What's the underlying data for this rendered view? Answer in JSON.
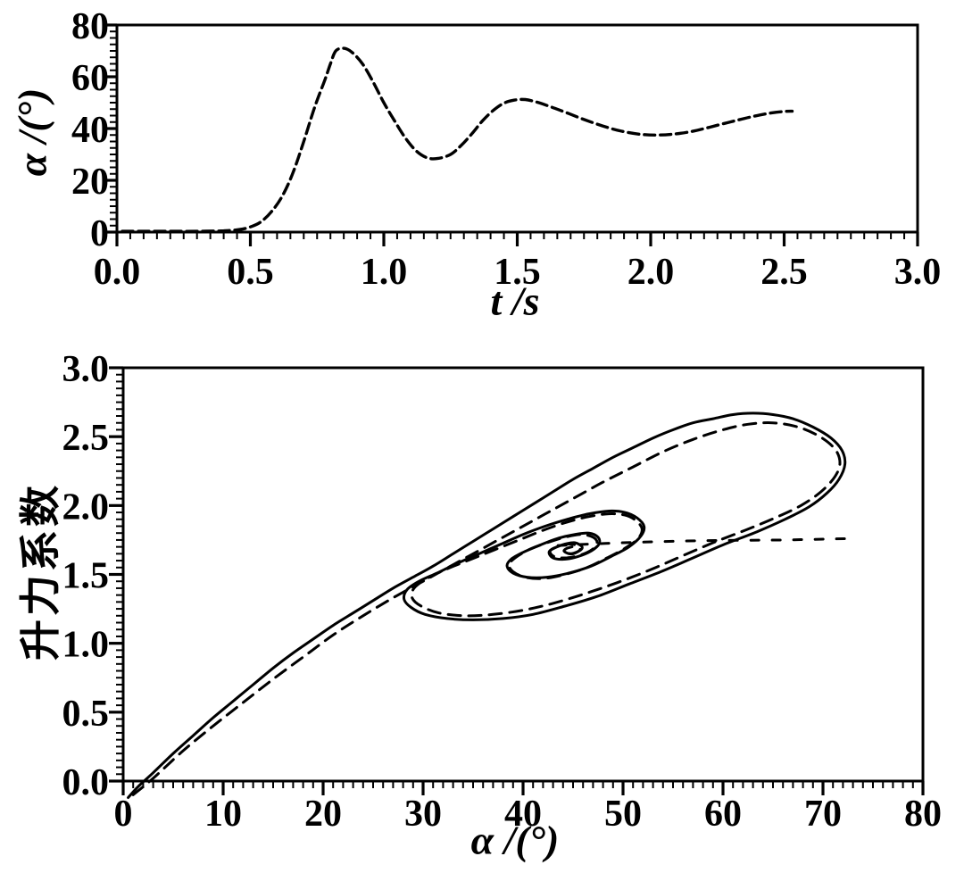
{
  "page": {
    "background": "#ffffff",
    "ink": "#000000"
  },
  "chart_data": [
    {
      "type": "line",
      "id": "alpha-vs-time",
      "title": "",
      "xlabel": "t /s",
      "ylabel": "α /(°)",
      "xlim": [
        0.0,
        3.0
      ],
      "ylim": [
        0,
        80
      ],
      "grid": false,
      "legend": "none",
      "x_ticks": [
        0.0,
        0.5,
        1.0,
        1.5,
        2.0,
        2.5,
        3.0
      ],
      "x_tick_labels": [
        "0.0",
        "0.5",
        "1.0",
        "1.5",
        "2.0",
        "2.5",
        "3.0"
      ],
      "y_ticks": [
        0,
        20,
        40,
        60,
        80
      ],
      "y_tick_labels": [
        "0",
        "20",
        "40",
        "60",
        "80"
      ],
      "x_minor_step": 0.05,
      "y_minor_step": 2.5,
      "series": [
        {
          "name": "angle-of-attack-response-curve",
          "style": "dashed",
          "dash": "12 6",
          "width": 3.4,
          "points": [
            [
              0.02,
              0.3
            ],
            [
              0.1,
              0.3
            ],
            [
              0.2,
              0.3
            ],
            [
              0.3,
              0.3
            ],
            [
              0.4,
              0.5
            ],
            [
              0.46,
              1
            ],
            [
              0.5,
              2
            ],
            [
              0.54,
              4
            ],
            [
              0.58,
              8
            ],
            [
              0.62,
              14
            ],
            [
              0.66,
              23
            ],
            [
              0.7,
              35
            ],
            [
              0.74,
              48
            ],
            [
              0.78,
              59
            ],
            [
              0.8,
              65
            ],
            [
              0.82,
              70
            ],
            [
              0.85,
              71
            ],
            [
              0.88,
              69.5
            ],
            [
              0.92,
              65
            ],
            [
              0.96,
              58
            ],
            [
              1.0,
              50
            ],
            [
              1.04,
              43
            ],
            [
              1.08,
              36.5
            ],
            [
              1.12,
              31.5
            ],
            [
              1.16,
              28.8
            ],
            [
              1.2,
              28.4
            ],
            [
              1.25,
              30
            ],
            [
              1.29,
              33.5
            ],
            [
              1.33,
              38
            ],
            [
              1.37,
              43
            ],
            [
              1.41,
              47
            ],
            [
              1.45,
              49.8
            ],
            [
              1.49,
              51
            ],
            [
              1.53,
              51.2
            ],
            [
              1.57,
              50.3
            ],
            [
              1.62,
              48.6
            ],
            [
              1.68,
              46.3
            ],
            [
              1.75,
              43.5
            ],
            [
              1.82,
              41
            ],
            [
              1.89,
              39
            ],
            [
              1.96,
              37.8
            ],
            [
              2.02,
              37.5
            ],
            [
              2.08,
              37.8
            ],
            [
              2.15,
              38.8
            ],
            [
              2.22,
              40.5
            ],
            [
              2.3,
              42.6
            ],
            [
              2.38,
              44.6
            ],
            [
              2.45,
              46
            ],
            [
              2.5,
              46.6
            ],
            [
              2.53,
              46.7
            ]
          ]
        }
      ]
    },
    {
      "type": "line",
      "id": "lift-vs-alpha",
      "title": "",
      "xlabel": "α /(°)",
      "ylabel": "升力系数",
      "xlim": [
        0,
        80
      ],
      "ylim": [
        0.0,
        3.0
      ],
      "grid": false,
      "legend": "none",
      "x_ticks": [
        0,
        10,
        20,
        30,
        40,
        50,
        60,
        70,
        80
      ],
      "x_tick_labels": [
        "0",
        "10",
        "20",
        "30",
        "40",
        "50",
        "60",
        "70",
        "80"
      ],
      "y_ticks": [
        0.0,
        0.5,
        1.0,
        1.5,
        2.0,
        2.5,
        3.0
      ],
      "y_tick_labels": [
        "0.0",
        "0.5",
        "1.0",
        "1.5",
        "2.0",
        "2.5",
        "3.0"
      ],
      "x_minor_step": 1,
      "y_minor_step": 0.05,
      "series": [
        {
          "name": "dynamic-lift-hysteresis-loop-solid",
          "style": "solid",
          "dash": "",
          "width": 3,
          "points": [
            [
              0.5,
              -0.12
            ],
            [
              1.5,
              -0.04
            ],
            [
              3,
              0.06
            ],
            [
              5,
              0.2
            ],
            [
              7,
              0.33
            ],
            [
              9,
              0.46
            ],
            [
              11,
              0.58
            ],
            [
              13,
              0.7
            ],
            [
              15,
              0.82
            ],
            [
              17,
              0.93
            ],
            [
              19,
              1.03
            ],
            [
              21,
              1.13
            ],
            [
              23,
              1.22
            ],
            [
              25,
              1.31
            ],
            [
              27,
              1.4
            ],
            [
              29,
              1.48
            ],
            [
              31,
              1.56
            ],
            [
              33,
              1.65
            ],
            [
              35,
              1.74
            ],
            [
              37,
              1.83
            ],
            [
              39,
              1.92
            ],
            [
              41,
              2.01
            ],
            [
              43,
              2.1
            ],
            [
              45,
              2.19
            ],
            [
              47,
              2.27
            ],
            [
              49,
              2.35
            ],
            [
              51,
              2.42
            ],
            [
              53,
              2.49
            ],
            [
              55,
              2.55
            ],
            [
              57,
              2.6
            ],
            [
              59,
              2.63
            ],
            [
              61,
              2.66
            ],
            [
              63,
              2.67
            ],
            [
              65,
              2.66
            ],
            [
              67,
              2.63
            ],
            [
              69,
              2.57
            ],
            [
              70.8,
              2.49
            ],
            [
              71.9,
              2.4
            ],
            [
              72.2,
              2.3
            ],
            [
              71.6,
              2.19
            ],
            [
              70.4,
              2.09
            ],
            [
              68.6,
              1.99
            ],
            [
              66.2,
              1.9
            ],
            [
              63.4,
              1.81
            ],
            [
              60.2,
              1.72
            ],
            [
              57,
              1.62
            ],
            [
              53.8,
              1.52
            ],
            [
              50.6,
              1.43
            ],
            [
              47.4,
              1.34
            ],
            [
              44.2,
              1.27
            ],
            [
              41,
              1.21
            ],
            [
              38,
              1.18
            ],
            [
              35,
              1.17
            ],
            [
              32.4,
              1.18
            ],
            [
              30.2,
              1.21
            ],
            [
              28.8,
              1.26
            ],
            [
              28.1,
              1.32
            ],
            [
              28.4,
              1.39
            ],
            [
              29.6,
              1.45
            ],
            [
              31.4,
              1.51
            ],
            [
              33.4,
              1.58
            ],
            [
              35.6,
              1.65
            ],
            [
              37.8,
              1.72
            ],
            [
              40,
              1.79
            ],
            [
              42.2,
              1.85
            ],
            [
              44.4,
              1.9
            ],
            [
              46.6,
              1.94
            ],
            [
              48.6,
              1.96
            ],
            [
              50.2,
              1.95
            ],
            [
              51.4,
              1.91
            ],
            [
              52.1,
              1.85
            ],
            [
              51.8,
              1.78
            ],
            [
              50.6,
              1.7
            ],
            [
              48.8,
              1.63
            ],
            [
              46.8,
              1.56
            ],
            [
              44.6,
              1.51
            ],
            [
              42.4,
              1.48
            ],
            [
              40.4,
              1.48
            ],
            [
              39,
              1.51
            ],
            [
              38.4,
              1.56
            ],
            [
              38.8,
              1.61
            ],
            [
              40,
              1.66
            ],
            [
              41.6,
              1.71
            ],
            [
              43.4,
              1.76
            ],
            [
              45.2,
              1.79
            ],
            [
              46.6,
              1.8
            ],
            [
              47.5,
              1.77
            ],
            [
              47.6,
              1.72
            ],
            [
              46.8,
              1.67
            ],
            [
              45.5,
              1.63
            ],
            [
              44.1,
              1.61
            ],
            [
              43,
              1.62
            ],
            [
              42.6,
              1.66
            ],
            [
              43.1,
              1.69
            ],
            [
              44.2,
              1.72
            ],
            [
              45.2,
              1.73
            ],
            [
              45.9,
              1.7
            ],
            [
              45.6,
              1.67
            ],
            [
              44.7,
              1.65
            ],
            [
              44.1,
              1.67
            ],
            [
              44.4,
              1.69
            ],
            [
              44.9,
              1.7
            ]
          ]
        },
        {
          "name": "dynamic-lift-hysteresis-loop-dashed-overlay",
          "style": "dashed",
          "dash": "14 9",
          "width": 3,
          "points": [
            [
              1,
              -0.1
            ],
            [
              3,
              0.02
            ],
            [
              6,
              0.22
            ],
            [
              9,
              0.4
            ],
            [
              12,
              0.57
            ],
            [
              15,
              0.74
            ],
            [
              18,
              0.9
            ],
            [
              21,
              1.06
            ],
            [
              24,
              1.2
            ],
            [
              27,
              1.33
            ],
            [
              30,
              1.45
            ],
            [
              33,
              1.57
            ],
            [
              36,
              1.69
            ],
            [
              39,
              1.81
            ],
            [
              42,
              1.93
            ],
            [
              45,
              2.05
            ],
            [
              48,
              2.17
            ],
            [
              51,
              2.28
            ],
            [
              54,
              2.39
            ],
            [
              57,
              2.48
            ],
            [
              60,
              2.55
            ],
            [
              62.5,
              2.59
            ],
            [
              65,
              2.6
            ],
            [
              67.5,
              2.57
            ],
            [
              69.7,
              2.5
            ],
            [
              71.2,
              2.41
            ],
            [
              71.7,
              2.31
            ],
            [
              71.2,
              2.21
            ],
            [
              69.8,
              2.1
            ],
            [
              67.8,
              2.0
            ],
            [
              65.2,
              1.91
            ],
            [
              62.2,
              1.82
            ],
            [
              59,
              1.73
            ],
            [
              55.8,
              1.63
            ],
            [
              52.6,
              1.53
            ],
            [
              49.4,
              1.44
            ],
            [
              46.2,
              1.36
            ],
            [
              43,
              1.29
            ],
            [
              40,
              1.24
            ],
            [
              37,
              1.21
            ],
            [
              34.2,
              1.2
            ],
            [
              31.6,
              1.22
            ],
            [
              29.8,
              1.27
            ],
            [
              28.9,
              1.33
            ],
            [
              29.1,
              1.4
            ],
            [
              30.4,
              1.47
            ],
            [
              32.4,
              1.54
            ],
            [
              34.8,
              1.61
            ],
            [
              37.2,
              1.68
            ],
            [
              39.6,
              1.75
            ],
            [
              42,
              1.82
            ],
            [
              44.4,
              1.88
            ],
            [
              46.6,
              1.92
            ],
            [
              48.6,
              1.94
            ],
            [
              50.2,
              1.93
            ],
            [
              51.3,
              1.89
            ],
            [
              51.9,
              1.83
            ],
            [
              51.5,
              1.76
            ],
            [
              50.2,
              1.69
            ],
            [
              48.4,
              1.62
            ],
            [
              46.4,
              1.55
            ],
            [
              44.2,
              1.5
            ],
            [
              42,
              1.47
            ],
            [
              40.2,
              1.48
            ],
            [
              39,
              1.52
            ],
            [
              38.6,
              1.57
            ],
            [
              39.2,
              1.62
            ],
            [
              40.6,
              1.68
            ],
            [
              42.4,
              1.73
            ],
            [
              44.2,
              1.77
            ],
            [
              45.8,
              1.79
            ],
            [
              47,
              1.77
            ],
            [
              47.4,
              1.73
            ],
            [
              46.9,
              1.68
            ],
            [
              45.7,
              1.64
            ],
            [
              44.3,
              1.62
            ],
            [
              43.1,
              1.63
            ],
            [
              42.7,
              1.67
            ],
            [
              43.4,
              1.7
            ],
            [
              44.5,
              1.72
            ],
            [
              45.4,
              1.71
            ],
            [
              45.7,
              1.68
            ],
            [
              45,
              1.65
            ],
            [
              44.3,
              1.66
            ],
            [
              44.2,
              1.69
            ]
          ]
        },
        {
          "name": "static-lift-level-dashed-line",
          "style": "dashed",
          "dash": "9 15",
          "width": 3,
          "points": [
            [
              43.5,
              1.71
            ],
            [
              50,
              1.73
            ],
            [
              58,
              1.745
            ],
            [
              66,
              1.75
            ],
            [
              72.5,
              1.76
            ]
          ]
        }
      ]
    }
  ]
}
